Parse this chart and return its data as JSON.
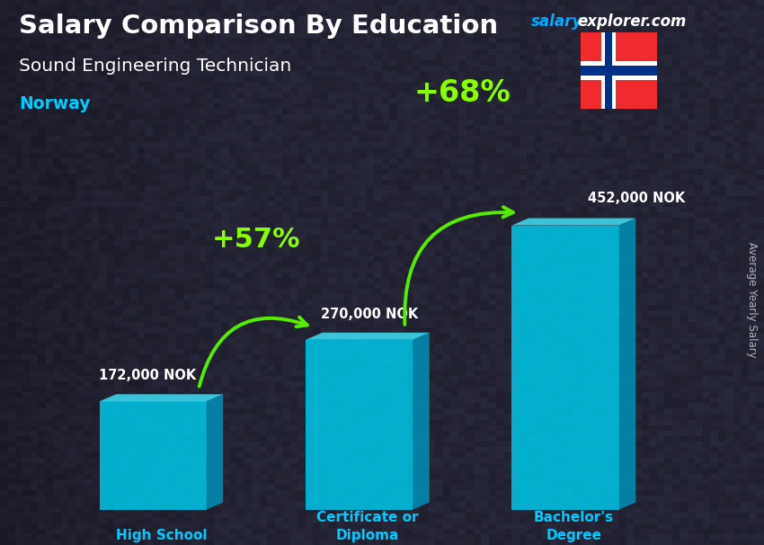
{
  "title": "Salary Comparison By Education",
  "subtitle": "Sound Engineering Technician",
  "country": "Norway",
  "watermark_salary": "salary",
  "watermark_rest": "explorer.com",
  "ylabel": "Average Yearly Salary",
  "categories": [
    "High School",
    "Certificate or\nDiploma",
    "Bachelor's\nDegree"
  ],
  "values": [
    172000,
    270000,
    452000
  ],
  "labels": [
    "172,000 NOK",
    "270,000 NOK",
    "452,000 NOK"
  ],
  "pct_labels": [
    "+57%",
    "+68%"
  ],
  "bar_color_front": "#00c8e8",
  "bar_color_side": "#0090b8",
  "bar_color_top": "#40e0f8",
  "bg_color": "#1e1e2e",
  "title_color": "#ffffff",
  "subtitle_color": "#ffffff",
  "country_color": "#00ccff",
  "label_color": "#ffffff",
  "pct_color": "#88ff00",
  "arrow_color": "#55ee00",
  "watermark_salary_color": "#00aaff",
  "watermark_rest_color": "#ffffff",
  "ylabel_color": "#cccccc",
  "cat_color": "#00ccff",
  "figsize": [
    8.5,
    6.06
  ],
  "dpi": 100,
  "bar_positions": [
    0.2,
    0.47,
    0.74
  ],
  "bar_width": 0.14,
  "bar_depth": 0.022,
  "bar_bottom": 0.065,
  "max_val": 520000
}
